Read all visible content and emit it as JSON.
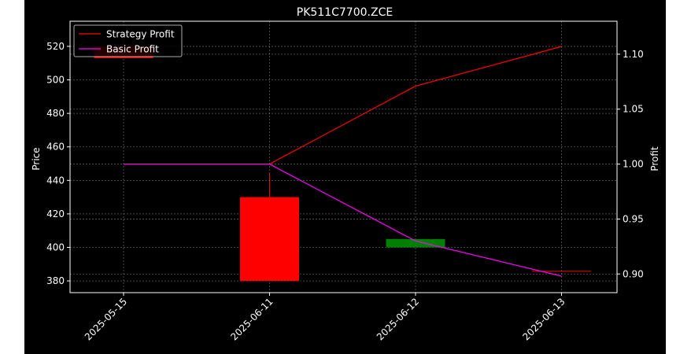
{
  "chart_data": {
    "type": "candlestick-with-lines",
    "title": "PK511C7700.ZCE",
    "xlabel": "",
    "ylabel_left": "Price",
    "ylabel_right": "Profit",
    "categories": [
      "2025-05-15",
      "2025-06-11",
      "2025-06-12",
      "2025-06-13"
    ],
    "ylim_left": [
      373,
      535
    ],
    "ylim_right": [
      0.883,
      1.13
    ],
    "yticks_left": [
      380,
      400,
      420,
      440,
      460,
      480,
      500,
      520
    ],
    "yticks_right": [
      0.9,
      0.95,
      1.0,
      1.05,
      1.1
    ],
    "ytick_labels_right": [
      "0.90",
      "0.95",
      "1.00",
      "1.05",
      "1.10"
    ],
    "grid": true,
    "legend_position": "top-left",
    "candles": [
      {
        "x": "2025-05-15",
        "open": 520,
        "close": 513,
        "high": 524,
        "low": 513,
        "color": "#ff0000"
      },
      {
        "x": "2025-06-11",
        "open": 430,
        "close": 380,
        "high": 444,
        "low": 380,
        "color": "#ff0000"
      },
      {
        "x": "2025-06-12",
        "open": 400,
        "close": 405,
        "high": 405,
        "low": 400,
        "color": "#008000"
      },
      {
        "x": "2025-06-13",
        "open": 386,
        "close": 386,
        "high": 386,
        "low": 386,
        "color": "#ff0000"
      }
    ],
    "series": [
      {
        "name": "Strategy Profit",
        "color": "#ff0000",
        "values": [
          1.0,
          1.0,
          1.071,
          1.107
        ]
      },
      {
        "name": "Basic Profit",
        "color": "#ff00ff",
        "values": [
          1.0,
          1.0,
          0.93,
          0.898
        ]
      }
    ]
  }
}
